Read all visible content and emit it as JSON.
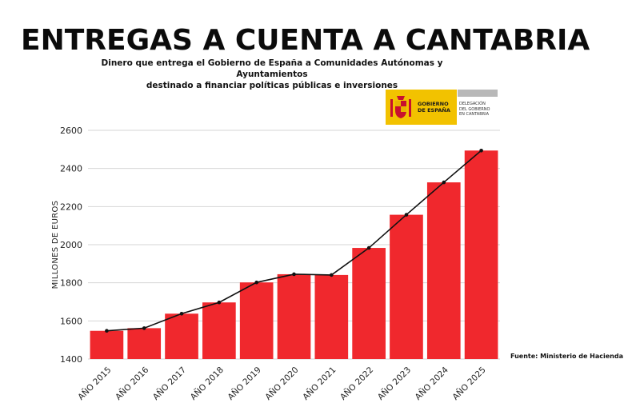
{
  "header": {
    "title": "ENTREGAS A CUENTA A CANTABRIA",
    "subtitle_line1": "Dinero que entrega el Gobierno de España a Comunidades Autónomas y Ayuntamientos",
    "subtitle_line2": "destinado a financiar políticas públicas e inversiones"
  },
  "logo": {
    "gov_line1": "GOBIERNO",
    "gov_line2": "DE ESPAÑA",
    "del_line1": "DELEGACIÓN",
    "del_line2": "DEL GOBIERNO",
    "del_line3": "EN CANTABRIA",
    "colors": {
      "yellow": "#f2c200",
      "grey": "#b8b8b8",
      "red": "#c8102e"
    }
  },
  "source": "Fuente: Ministerio de Hacienda",
  "chart_data": {
    "type": "bar",
    "categories": [
      "AÑO 2015",
      "AÑO 2016",
      "AÑO 2017",
      "AÑO 2018",
      "AÑO 2019",
      "AÑO 2020",
      "AÑO 2021",
      "AÑO 2022",
      "AÑO 2023",
      "AÑO 2024",
      "AÑO 2025"
    ],
    "values": [
      1548,
      1562,
      1638,
      1697,
      1802,
      1845,
      1841,
      1983,
      2157,
      2327,
      2494
    ],
    "overlay_line": true,
    "ylabel": "MILLONES DE EUROS",
    "ylim": [
      1400,
      2600
    ],
    "yticks": [
      1400,
      1600,
      1800,
      2000,
      2200,
      2400,
      2600
    ],
    "grid": true,
    "colors": {
      "bar": "#f0282d",
      "line": "#111111",
      "grid": "#d6d6d6"
    }
  }
}
